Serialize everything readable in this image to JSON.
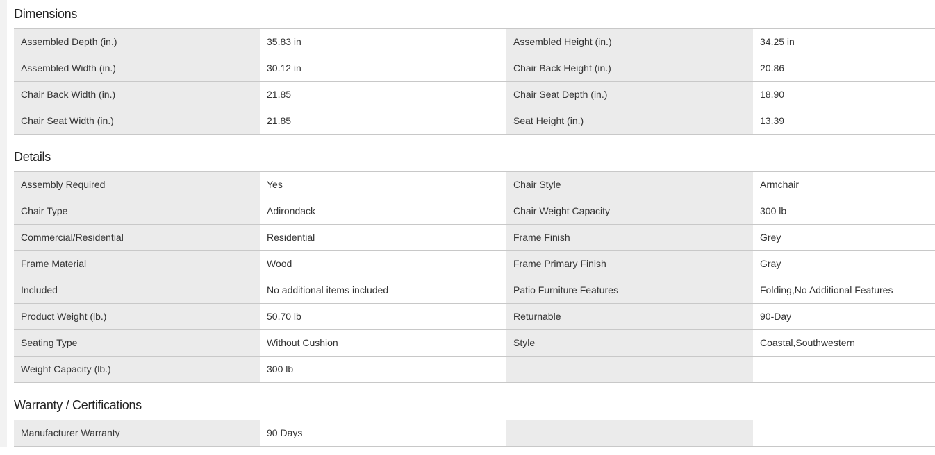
{
  "sections": [
    {
      "title": "Dimensions",
      "rows": [
        [
          "Assembled Depth (in.)",
          "35.83 in",
          "Assembled Height (in.)",
          "34.25 in"
        ],
        [
          "Assembled Width (in.)",
          "30.12 in",
          "Chair Back Height (in.)",
          "20.86"
        ],
        [
          "Chair Back Width (in.)",
          "21.85",
          "Chair Seat Depth (in.)",
          "18.90"
        ],
        [
          "Chair Seat Width (in.)",
          "21.85",
          "Seat Height (in.)",
          "13.39"
        ]
      ]
    },
    {
      "title": "Details",
      "rows": [
        [
          "Assembly Required",
          "Yes",
          "Chair Style",
          "Armchair"
        ],
        [
          "Chair Type",
          "Adirondack",
          "Chair Weight Capacity",
          "300 lb"
        ],
        [
          "Commercial/Residential",
          "Residential",
          "Frame Finish",
          "Grey"
        ],
        [
          "Frame Material",
          "Wood",
          "Frame Primary Finish",
          "Gray"
        ],
        [
          "Included",
          "No additional items included",
          "Patio Furniture Features",
          "Folding,No Additional Features"
        ],
        [
          "Product Weight (lb.)",
          "50.70 lb",
          "Returnable",
          "90-Day"
        ],
        [
          "Seating Type",
          "Without Cushion",
          "Style",
          "Coastal,Southwestern"
        ],
        [
          "Weight Capacity (lb.)",
          "300 lb",
          "",
          ""
        ]
      ]
    },
    {
      "title": "Warranty / Certifications",
      "rows": [
        [
          "Manufacturer Warranty",
          "90 Days",
          "",
          ""
        ]
      ]
    }
  ]
}
